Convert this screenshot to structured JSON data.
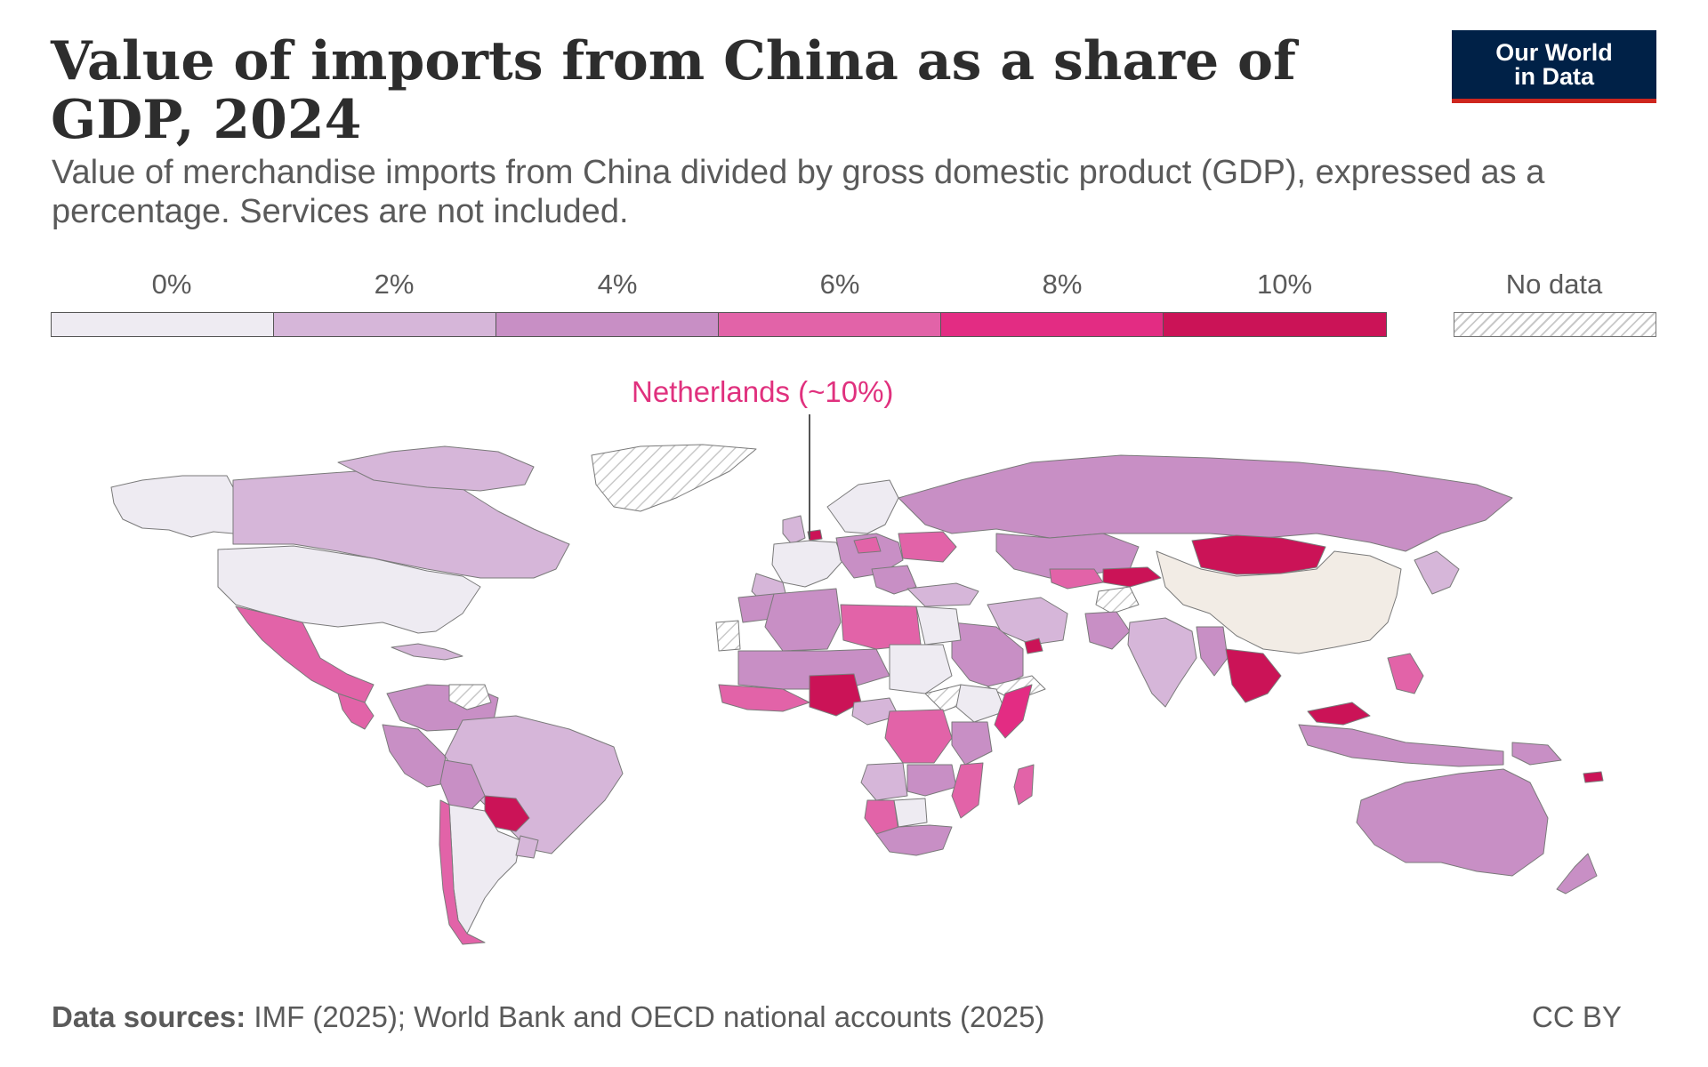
{
  "title": "Value of imports from China as a share of GDP, 2024",
  "subtitle": "Value of merchandise imports from China divided by gross domestic product (GDP), expressed as a percentage. Services are not included.",
  "logo": {
    "text": "Our World\nin Data",
    "background": "#002147",
    "accent": "#ce261e"
  },
  "legend": {
    "ticks": [
      "0%",
      "2%",
      "4%",
      "6%",
      "8%",
      "10%"
    ],
    "bins": [
      {
        "range": [
          0,
          2
        ],
        "color": "#eeebf2"
      },
      {
        "range": [
          2,
          4
        ],
        "color": "#d6b6d9"
      },
      {
        "range": [
          4,
          6
        ],
        "color": "#c88fc5"
      },
      {
        "range": [
          6,
          8
        ],
        "color": "#e263a8"
      },
      {
        "range": [
          8,
          10
        ],
        "color": "#e32c83"
      },
      {
        "range": [
          10,
          12
        ],
        "color": "#cb1357"
      }
    ],
    "no_data_label": "No data",
    "no_data_pattern": "hatched"
  },
  "annotation": {
    "text": "Netherlands (~10%)",
    "color": "#e0317e"
  },
  "chart_data": {
    "type": "choropleth",
    "unit": "%",
    "year": 2024,
    "regions": [
      {
        "name": "Netherlands",
        "bin": "~10%"
      },
      {
        "name": "China",
        "bin": "n/a (origin)",
        "color": "#f2ece5"
      },
      {
        "name": "Canada",
        "bin": "2-4%"
      },
      {
        "name": "Alaska (USA)",
        "bin": "0-2%"
      },
      {
        "name": "United States",
        "bin": "0-2%"
      },
      {
        "name": "Greenland",
        "bin": "No data"
      },
      {
        "name": "Mexico",
        "bin": "6-8%"
      },
      {
        "name": "Central America",
        "bin": "6-8%"
      },
      {
        "name": "Colombia / Venezuela",
        "bin": "4-6%"
      },
      {
        "name": "Brazil",
        "bin": "2-4%"
      },
      {
        "name": "Peru",
        "bin": "4-6%"
      },
      {
        "name": "Bolivia",
        "bin": "4-6%"
      },
      {
        "name": "Paraguay",
        "bin": "10%+"
      },
      {
        "name": "Argentina",
        "bin": "0-2%"
      },
      {
        "name": "Chile",
        "bin": "6-8%"
      },
      {
        "name": "Uruguay",
        "bin": "2-4%"
      },
      {
        "name": "Western Sahara",
        "bin": "No data"
      },
      {
        "name": "Algeria",
        "bin": "4-6%"
      },
      {
        "name": "Libya",
        "bin": "6-8%"
      },
      {
        "name": "Egypt",
        "bin": "0-2%"
      },
      {
        "name": "Sudan",
        "bin": "0-2%"
      },
      {
        "name": "South Sudan",
        "bin": "No data"
      },
      {
        "name": "Mali / Niger",
        "bin": "4-6%"
      },
      {
        "name": "West Africa",
        "bin": "6-8%"
      },
      {
        "name": "Nigeria",
        "bin": "10%+"
      },
      {
        "name": "DR Congo",
        "bin": "6-8%"
      },
      {
        "name": "Ethiopia",
        "bin": "0-2%"
      },
      {
        "name": "Somalia",
        "bin": "8-10%"
      },
      {
        "name": "East Africa",
        "bin": "4-6%"
      },
      {
        "name": "Angola",
        "bin": "2-4%"
      },
      {
        "name": "Zambia",
        "bin": "4-6%"
      },
      {
        "name": "Mozambique",
        "bin": "6-8%"
      },
      {
        "name": "Namibia",
        "bin": "6-8%"
      },
      {
        "name": "South Africa",
        "bin": "4-6%"
      },
      {
        "name": "Botswana",
        "bin": "0-2%"
      },
      {
        "name": "Madagascar",
        "bin": "6-8%"
      },
      {
        "name": "Western Europe",
        "bin": "0-2%"
      },
      {
        "name": "Scandinavia",
        "bin": "0-2%"
      },
      {
        "name": "Central Europe",
        "bin": "4-6%"
      },
      {
        "name": "Ukraine",
        "bin": "6-8%"
      },
      {
        "name": "Russia",
        "bin": "4-6%"
      },
      {
        "name": "Kazakhstan",
        "bin": "4-6%"
      },
      {
        "name": "Kyrgyzstan / Tajikistan",
        "bin": "10%+"
      },
      {
        "name": "Uzbekistan",
        "bin": "6-8%"
      },
      {
        "name": "Mongolia",
        "bin": "10%+"
      },
      {
        "name": "Iran",
        "bin": "2-4%"
      },
      {
        "name": "Saudi Arabia",
        "bin": "4-6%"
      },
      {
        "name": "UAE",
        "bin": "10%+"
      },
      {
        "name": "Yemen",
        "bin": "No data"
      },
      {
        "name": "Afghanistan",
        "bin": "No data"
      },
      {
        "name": "Pakistan",
        "bin": "4-6%"
      },
      {
        "name": "India",
        "bin": "2-4%"
      },
      {
        "name": "Myanmar",
        "bin": "4-6%"
      },
      {
        "name": "Thailand / Vietnam / Cambodia",
        "bin": "10%+"
      },
      {
        "name": "Malaysia",
        "bin": "10%+"
      },
      {
        "name": "Philippines",
        "bin": "6-8%"
      },
      {
        "name": "Indonesia",
        "bin": "4-6%"
      },
      {
        "name": "Papua New Guinea",
        "bin": "4-6%"
      },
      {
        "name": "Solomon Islands",
        "bin": "10%+"
      },
      {
        "name": "Australia",
        "bin": "4-6%"
      },
      {
        "name": "New Zealand",
        "bin": "4-6%"
      },
      {
        "name": "Japan",
        "bin": "2-4%"
      }
    ]
  },
  "footer": {
    "sources_label": "Data sources:",
    "sources_text": " IMF (2025); World Bank and OECD national accounts (2025)",
    "license": "CC BY"
  }
}
